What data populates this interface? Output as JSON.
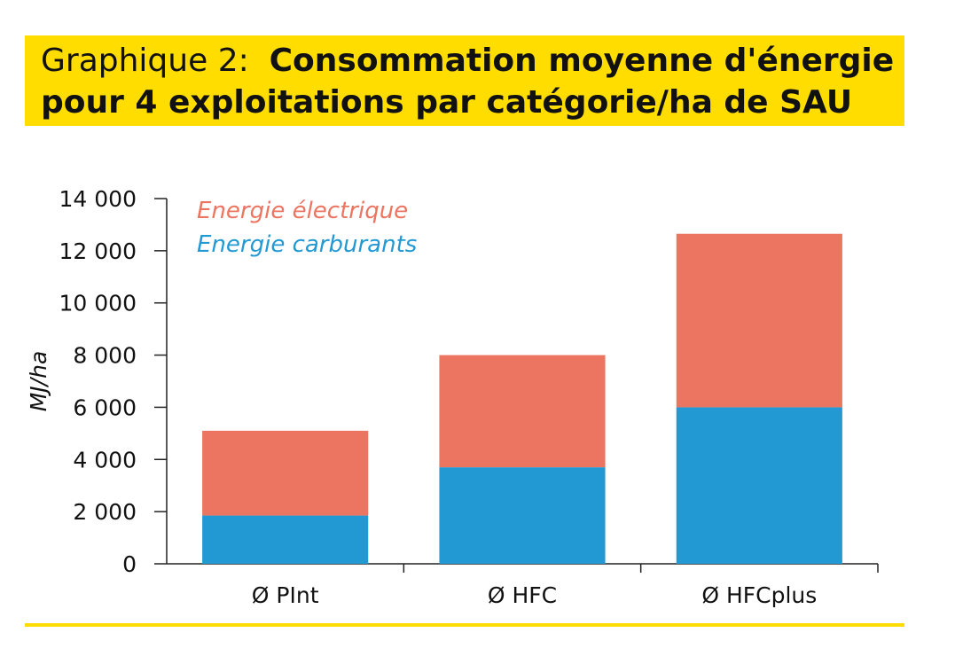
{
  "title": {
    "prefix": "Graphique 2:",
    "line1": "Consommation moyenne d'énergie",
    "line2": "pour 4 exploitations par catégorie/ha de SAU"
  },
  "colors": {
    "band": "#FFDD00",
    "electric": "#EC7561",
    "fuel": "#2399D4",
    "axis": "#222222"
  },
  "chart_data": {
    "type": "bar",
    "stacked": true,
    "categories": [
      "Ø PInt",
      "Ø HFC",
      "Ø HFCplus"
    ],
    "series": [
      {
        "name": "Energie carburants",
        "values": [
          1850,
          3700,
          6000
        ]
      },
      {
        "name": "Energie électrique",
        "values": [
          3250,
          4300,
          6650
        ]
      }
    ],
    "ylabel": "MJ/ha",
    "xlabel": "",
    "ylim": [
      0,
      14000
    ],
    "yticks": [
      0,
      2000,
      4000,
      6000,
      8000,
      10000,
      12000,
      14000
    ],
    "ytick_labels": [
      "0",
      "2 000",
      "4 000",
      "6 000",
      "8 000",
      "10 000",
      "12 000",
      "14 000"
    ],
    "legend_position": "top-left",
    "grid": false
  }
}
